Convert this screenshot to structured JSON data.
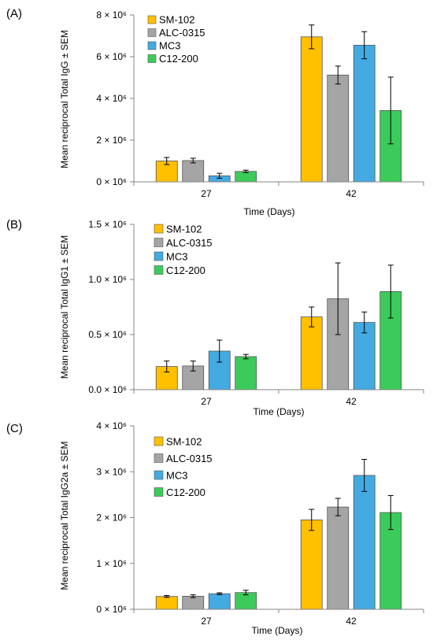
{
  "chart_data": [
    {
      "type": "bar",
      "panel": "(A)",
      "title": "",
      "xlabel": "Time (Days)",
      "ylabel": "Mean reciprocal Total IgG ± SEM",
      "ylim": [
        0,
        8000000
      ],
      "yticks": [
        0,
        2000000,
        4000000,
        6000000,
        8000000
      ],
      "ytick_labels": [
        "0 × 10⁶",
        "2 × 10⁶",
        "4 × 10⁶",
        "6 × 10⁶",
        "8 × 10⁶"
      ],
      "categories": [
        "27",
        "42"
      ],
      "legend_position": "top-left",
      "grid": false,
      "series": [
        {
          "name": "SM-102",
          "color": "#FFC000",
          "values": [
            1000000,
            6950000
          ],
          "errors": [
            170000,
            570000
          ]
        },
        {
          "name": "ALC-0315",
          "color": "#A5A5A5",
          "values": [
            1020000,
            5120000
          ],
          "errors": [
            110000,
            430000
          ]
        },
        {
          "name": "MC3",
          "color": "#44AAE2",
          "values": [
            290000,
            6550000
          ],
          "errors": [
            120000,
            650000
          ]
        },
        {
          "name": "C12-200",
          "color": "#3CCB5A",
          "values": [
            500000,
            3420000
          ],
          "errors": [
            60000,
            1600000
          ]
        }
      ]
    },
    {
      "type": "bar",
      "panel": "(B)",
      "title": "",
      "xlabel": "Time (Days)",
      "ylabel": "Mean reciprocal Total IgG1 ± SEM",
      "ylim": [
        0,
        1500000
      ],
      "yticks": [
        0,
        500000,
        1000000,
        1500000
      ],
      "ytick_labels": [
        "0.0 × 10⁶",
        "0.5 × 10⁶",
        "1.0 × 10⁶",
        "1.5 × 10⁶"
      ],
      "categories": [
        "27",
        "42"
      ],
      "legend_position": "top-left",
      "grid": false,
      "series": [
        {
          "name": "SM-102",
          "color": "#FFC000",
          "values": [
            210000,
            660000
          ],
          "errors": [
            50000,
            90000
          ]
        },
        {
          "name": "ALC-0315",
          "color": "#A5A5A5",
          "values": [
            215000,
            825000
          ],
          "errors": [
            45000,
            325000
          ]
        },
        {
          "name": "MC3",
          "color": "#44AAE2",
          "values": [
            350000,
            610000
          ],
          "errors": [
            100000,
            95000
          ]
        },
        {
          "name": "C12-200",
          "color": "#3CCB5A",
          "values": [
            300000,
            890000
          ],
          "errors": [
            20000,
            240000
          ]
        }
      ]
    },
    {
      "type": "bar",
      "panel": "(C)",
      "title": "",
      "xlabel": "Time (Days)",
      "ylabel": "Mean reciprocal Total IgG2a ± SEM",
      "ylim": [
        0,
        4000000
      ],
      "yticks": [
        0,
        1000000,
        2000000,
        3000000,
        4000000
      ],
      "ytick_labels": [
        "0 × 10⁶",
        "1 × 10⁶",
        "2 × 10⁶",
        "3 × 10⁶",
        "4 × 10⁶"
      ],
      "categories": [
        "27",
        "42"
      ],
      "legend_position": "top-left",
      "grid": false,
      "series": [
        {
          "name": "SM-102",
          "color": "#FFC000",
          "values": [
            280000,
            1950000
          ],
          "errors": [
            20000,
            230000
          ]
        },
        {
          "name": "ALC-0315",
          "color": "#A5A5A5",
          "values": [
            285000,
            2230000
          ],
          "errors": [
            30000,
            190000
          ]
        },
        {
          "name": "MC3",
          "color": "#44AAE2",
          "values": [
            340000,
            2920000
          ],
          "errors": [
            20000,
            350000
          ]
        },
        {
          "name": "C12-200",
          "color": "#3CCB5A",
          "values": [
            365000,
            2110000
          ],
          "errors": [
            50000,
            370000
          ]
        }
      ]
    }
  ]
}
